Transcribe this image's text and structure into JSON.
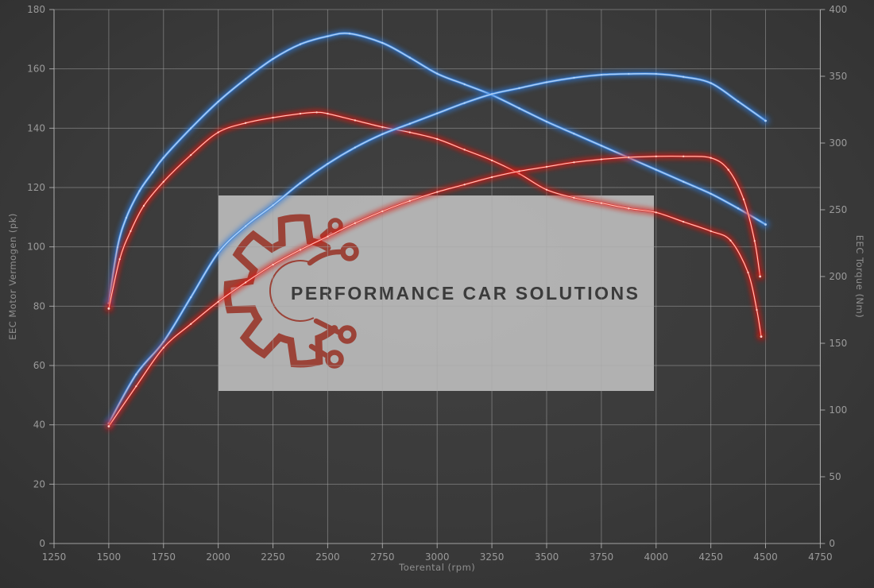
{
  "chart_data": {
    "type": "line",
    "title": "",
    "xlabel": "Toerental (rpm)",
    "ylabel_left": "EEC Motor Vermogen (pk)",
    "ylabel_right": "EEC Torque (Nm)",
    "xlim": [
      1250,
      4750
    ],
    "ylim_left": [
      0,
      180
    ],
    "ylim_right": [
      0,
      400
    ],
    "x_ticks": [
      1250,
      1500,
      1750,
      2000,
      2250,
      2500,
      2750,
      3000,
      3250,
      3500,
      3750,
      4000,
      4250,
      4500,
      4750
    ],
    "y_ticks_left": [
      0,
      20,
      40,
      60,
      80,
      100,
      120,
      140,
      160,
      180
    ],
    "y_ticks_right": [
      0,
      50,
      100,
      150,
      200,
      250,
      300,
      350,
      400
    ],
    "grid": true,
    "legend_position": "none",
    "colors": {
      "background": "#3b3b3b",
      "grid": "#a6a6a6",
      "axis_text": "#9a9a9a",
      "blue": "#3f87dd",
      "blue_glow": "#2e79d8",
      "blue_core": "#b9d6f6",
      "red": "#e2231c",
      "red_glow": "#e01510",
      "red_core": "#ffd8cf",
      "watermark_bg": "#c9c9c9",
      "watermark_text": "#3b3b3b",
      "logo": "#9b4338"
    },
    "watermark": {
      "text": "PERFORMANCE CAR SOLUTIONS",
      "logo": "gear-circuit-logo"
    },
    "series": [
      {
        "name": "torque-blue",
        "axis": "right",
        "unit": "Nm",
        "color_key": "blue",
        "peak": {
          "value": 382,
          "rpm": 2600
        },
        "points": [
          [
            1500,
            180
          ],
          [
            1540,
            222
          ],
          [
            1580,
            244
          ],
          [
            1640,
            264
          ],
          [
            1700,
            278
          ],
          [
            1750,
            289
          ],
          [
            1875,
            311
          ],
          [
            2000,
            331
          ],
          [
            2125,
            348
          ],
          [
            2250,
            363
          ],
          [
            2375,
            374
          ],
          [
            2500,
            380
          ],
          [
            2600,
            382
          ],
          [
            2750,
            375
          ],
          [
            2875,
            364
          ],
          [
            3000,
            352
          ],
          [
            3125,
            344
          ],
          [
            3250,
            336
          ],
          [
            3375,
            326
          ],
          [
            3500,
            316
          ],
          [
            3625,
            307
          ],
          [
            3750,
            298
          ],
          [
            3875,
            289
          ],
          [
            4000,
            280
          ],
          [
            4125,
            271
          ],
          [
            4250,
            262
          ],
          [
            4375,
            251
          ],
          [
            4500,
            239
          ]
        ]
      },
      {
        "name": "torque-red",
        "axis": "right",
        "unit": "Nm",
        "color_key": "red",
        "peak": {
          "value": 323,
          "rpm": 2450
        },
        "points": [
          [
            1500,
            176
          ],
          [
            1550,
            213
          ],
          [
            1600,
            234
          ],
          [
            1660,
            253
          ],
          [
            1750,
            271
          ],
          [
            1875,
            291
          ],
          [
            2000,
            308
          ],
          [
            2125,
            315
          ],
          [
            2250,
            319
          ],
          [
            2375,
            322
          ],
          [
            2450,
            323
          ],
          [
            2500,
            322
          ],
          [
            2625,
            317
          ],
          [
            2750,
            312
          ],
          [
            2875,
            308
          ],
          [
            3000,
            303
          ],
          [
            3125,
            295
          ],
          [
            3250,
            287
          ],
          [
            3375,
            277
          ],
          [
            3500,
            265
          ],
          [
            3625,
            259
          ],
          [
            3750,
            255
          ],
          [
            3875,
            251
          ],
          [
            4000,
            248
          ],
          [
            4125,
            241
          ],
          [
            4250,
            234
          ],
          [
            4340,
            227
          ],
          [
            4420,
            203
          ],
          [
            4460,
            175
          ],
          [
            4480,
            155
          ]
        ]
      },
      {
        "name": "power-blue",
        "axis": "left",
        "unit": "pk",
        "color_key": "blue",
        "peak": {
          "value": 158.3,
          "rpm": 4000
        },
        "points": [
          [
            1500,
            40.5
          ],
          [
            1625,
            57
          ],
          [
            1750,
            68
          ],
          [
            1875,
            83
          ],
          [
            2000,
            98
          ],
          [
            2125,
            107
          ],
          [
            2250,
            114
          ],
          [
            2375,
            121.5
          ],
          [
            2500,
            128
          ],
          [
            2625,
            133.5
          ],
          [
            2750,
            138
          ],
          [
            2875,
            141.5
          ],
          [
            3000,
            145
          ],
          [
            3125,
            148.5
          ],
          [
            3250,
            151.5
          ],
          [
            3375,
            153.5
          ],
          [
            3500,
            155.5
          ],
          [
            3625,
            157
          ],
          [
            3750,
            158
          ],
          [
            3875,
            158.3
          ],
          [
            4000,
            158.3
          ],
          [
            4125,
            157.3
          ],
          [
            4250,
            155.2
          ],
          [
            4375,
            149
          ],
          [
            4500,
            142.5
          ]
        ]
      },
      {
        "name": "power-red",
        "axis": "left",
        "unit": "pk",
        "color_key": "red",
        "peak": {
          "value": 130.5,
          "rpm": 4050
        },
        "points": [
          [
            1500,
            39.5
          ],
          [
            1625,
            53
          ],
          [
            1750,
            66
          ],
          [
            1875,
            74
          ],
          [
            2000,
            81.5
          ],
          [
            2125,
            88
          ],
          [
            2250,
            94
          ],
          [
            2375,
            99
          ],
          [
            2500,
            103.5
          ],
          [
            2625,
            108
          ],
          [
            2750,
            112
          ],
          [
            2875,
            115.5
          ],
          [
            3000,
            118.5
          ],
          [
            3125,
            121
          ],
          [
            3250,
            123.5
          ],
          [
            3375,
            125.5
          ],
          [
            3500,
            127
          ],
          [
            3625,
            128.5
          ],
          [
            3750,
            129.5
          ],
          [
            3875,
            130.2
          ],
          [
            4000,
            130.5
          ],
          [
            4125,
            130.5
          ],
          [
            4250,
            130
          ],
          [
            4330,
            126
          ],
          [
            4400,
            116
          ],
          [
            4450,
            102
          ],
          [
            4475,
            90
          ]
        ]
      }
    ]
  }
}
